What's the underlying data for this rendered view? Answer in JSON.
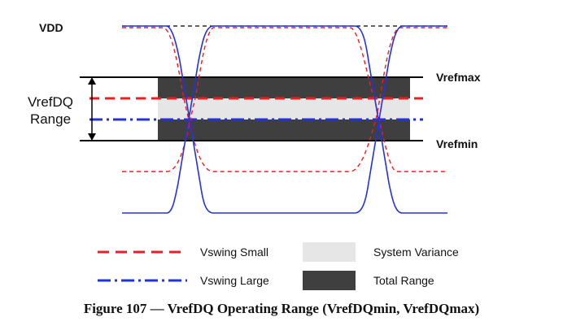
{
  "labels": {
    "vdd": "VDD",
    "vrefdq_range_line1": "VrefDQ",
    "vrefdq_range_line2": "Range",
    "vrefmax": "Vrefmax",
    "vrefmin": "Vrefmin"
  },
  "legend": {
    "vswing_small": "Vswing Small",
    "vswing_large": "Vswing Large",
    "system_variance": "System Variance",
    "total_range": "Total Range"
  },
  "caption": "Figure 107 — VrefDQ Operating Range (VrefDQmin, VrefDQmax)",
  "colors": {
    "vswing_small": "#ee1c24",
    "vswing_large": "#2233dd",
    "system_variance": "#e6e6e6",
    "total_range": "#3f3f3f",
    "ref_lines": "#000000"
  }
}
